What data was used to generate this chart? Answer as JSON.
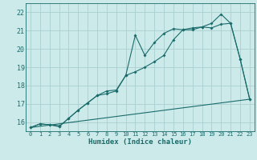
{
  "xlabel": "Humidex (Indice chaleur)",
  "background_color": "#cceaea",
  "grid_color": "#aacfcf",
  "line_color": "#1a6b6b",
  "xlim": [
    -0.5,
    23.5
  ],
  "ylim": [
    15.5,
    22.5
  ],
  "xticks": [
    0,
    1,
    2,
    3,
    4,
    5,
    6,
    7,
    8,
    9,
    10,
    11,
    12,
    13,
    14,
    15,
    16,
    17,
    18,
    19,
    20,
    21,
    22,
    23
  ],
  "yticks": [
    16,
    17,
    18,
    19,
    20,
    21,
    22
  ],
  "series1_x": [
    0,
    1,
    2,
    3,
    3,
    4,
    5,
    6,
    7,
    8,
    9,
    10,
    11,
    12,
    13,
    14,
    15,
    16,
    17,
    18,
    19,
    20,
    21,
    22,
    23
  ],
  "series1_y": [
    15.7,
    15.9,
    15.85,
    15.8,
    15.75,
    16.2,
    16.65,
    17.05,
    17.45,
    17.7,
    17.75,
    18.55,
    20.75,
    19.65,
    20.35,
    20.85,
    21.1,
    21.05,
    21.15,
    21.2,
    21.4,
    21.9,
    21.4,
    19.45,
    17.25
  ],
  "series2_x": [
    0,
    1,
    2,
    3,
    4,
    5,
    6,
    7,
    8,
    9,
    10,
    11,
    12,
    13,
    14,
    15,
    16,
    17,
    18,
    19,
    20,
    21,
    22,
    23
  ],
  "series2_y": [
    15.7,
    15.9,
    15.85,
    15.75,
    16.2,
    16.65,
    17.05,
    17.45,
    17.55,
    17.7,
    18.55,
    18.75,
    19.0,
    19.3,
    19.65,
    20.5,
    21.05,
    21.05,
    21.2,
    21.15,
    21.35,
    21.4,
    19.45,
    17.25
  ],
  "series3_x": [
    0,
    23
  ],
  "series3_y": [
    15.7,
    17.25
  ]
}
